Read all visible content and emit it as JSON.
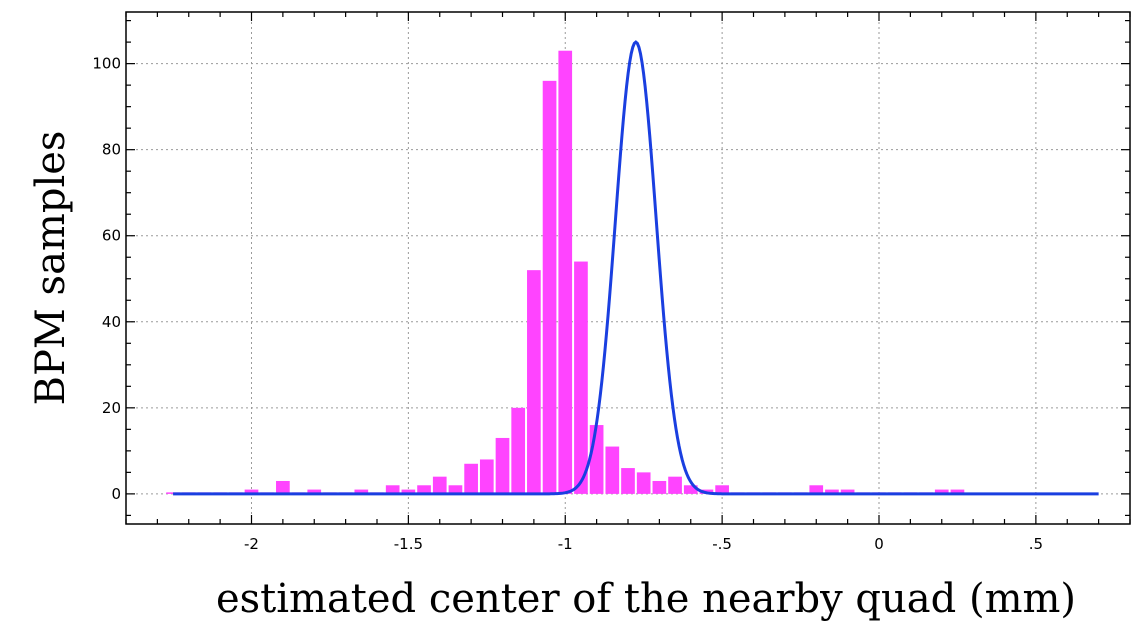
{
  "chart_data": {
    "type": "bar",
    "xlabel": "estimated center  of the nearby quad (mm)",
    "ylabel": "BPM samples",
    "xlim": [
      -2.4,
      0.8
    ],
    "ylim": [
      -7,
      112
    ],
    "x_ticks": [
      {
        "value": -2,
        "label": "-2"
      },
      {
        "value": -1.5,
        "label": "-1.5"
      },
      {
        "value": -1,
        "label": "-1"
      },
      {
        "value": -0.5,
        "label": "-.5"
      },
      {
        "value": 0,
        "label": "0"
      },
      {
        "value": 0.5,
        "label": ".5"
      }
    ],
    "y_ticks": [
      {
        "value": 0,
        "label": "0"
      },
      {
        "value": 20,
        "label": "20"
      },
      {
        "value": 40,
        "label": "40"
      },
      {
        "value": 60,
        "label": "60"
      },
      {
        "value": 80,
        "label": "80"
      },
      {
        "value": 100,
        "label": "100"
      }
    ],
    "grid": true,
    "bin_width": 0.05,
    "bars": {
      "color": "#ff44ff",
      "x_start": -2.25,
      "values": [
        0,
        0,
        0,
        0,
        0,
        1,
        0,
        3,
        0,
        1,
        0,
        0,
        1,
        0,
        2,
        1,
        2,
        4,
        2,
        7,
        8,
        13,
        20,
        52,
        96,
        103,
        54,
        16,
        11,
        6,
        5,
        3,
        4,
        2,
        1,
        2,
        0,
        0,
        0,
        0,
        0,
        2,
        1,
        1,
        0,
        0,
        0,
        0,
        0,
        1,
        1
      ]
    },
    "fit": {
      "type": "gaussian",
      "color": "#1a3fe0",
      "amplitude": 105,
      "mean": -0.775,
      "sigma": 0.065,
      "x_range": [
        -2.25,
        0.7
      ]
    }
  }
}
